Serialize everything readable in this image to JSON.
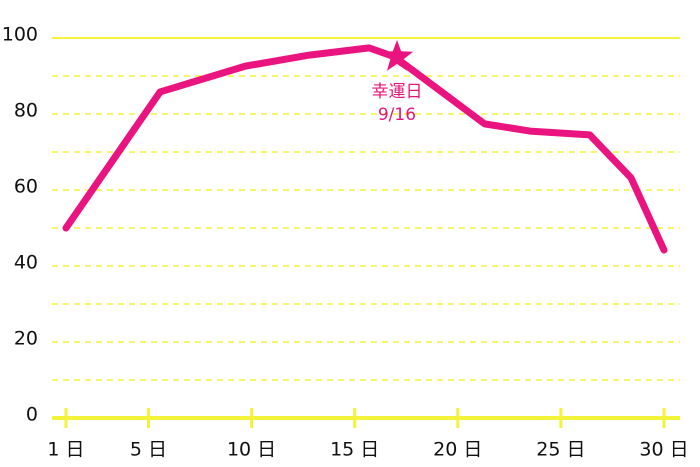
{
  "chart_data": {
    "type": "line",
    "x": [
      1,
      5.56,
      9.7,
      12.8,
      15.7,
      16.95,
      19.1,
      21.3,
      23.5,
      26.4,
      28.4,
      30
    ],
    "series": [
      {
        "color": "#ea1480",
        "values": [
          50,
          85.8,
          92.6,
          95.5,
          97.4,
          95,
          86.3,
          77.4,
          75.5,
          74.5,
          63.2,
          44.2
        ]
      }
    ],
    "xlim": [
      1,
      30
    ],
    "xticks": [
      {
        "value": 1,
        "label": "1 日"
      },
      {
        "value": 5,
        "label": "5 日"
      },
      {
        "value": 10,
        "label": "10 日"
      },
      {
        "value": 15,
        "label": "15 日"
      },
      {
        "value": 20,
        "label": "20 日"
      },
      {
        "value": 25,
        "label": "25 日"
      },
      {
        "value": 30,
        "label": "30 日"
      }
    ],
    "ylim": [
      0,
      100
    ],
    "yticks": [
      0,
      20,
      40,
      60,
      80,
      100
    ],
    "minor_yticks": [
      10,
      30,
      50,
      70,
      90
    ],
    "grid_color": "#f3f33a",
    "annotation": {
      "x": 17.05,
      "y": 95,
      "text": [
        "幸運日",
        "9/16"
      ],
      "color": "#ea1480"
    }
  }
}
